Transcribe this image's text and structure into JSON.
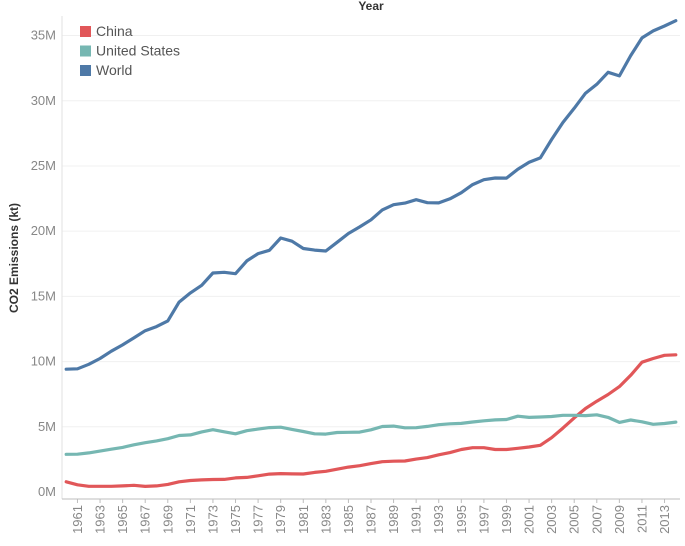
{
  "chart_data": {
    "type": "line",
    "title": "",
    "top_axis_title": "Year",
    "ylabel": "CO2 Emissions (kt)",
    "xlabel": "",
    "ylim": [
      0,
      36500000
    ],
    "y_ticks": [
      {
        "value": 0,
        "label": "0M"
      },
      {
        "value": 5000000,
        "label": "5M"
      },
      {
        "value": 10000000,
        "label": "10M"
      },
      {
        "value": 15000000,
        "label": "15M"
      },
      {
        "value": 20000000,
        "label": "20M"
      },
      {
        "value": 25000000,
        "label": "25M"
      },
      {
        "value": 30000000,
        "label": "30M"
      },
      {
        "value": 35000000,
        "label": "35M"
      }
    ],
    "x_tick_labels": [
      "1961",
      "1963",
      "1965",
      "1967",
      "1969",
      "1971",
      "1973",
      "1975",
      "1977",
      "1979",
      "1981",
      "1983",
      "1985",
      "1987",
      "1989",
      "1991",
      "1993",
      "1995",
      "1997",
      "1999",
      "2001",
      "2003",
      "2005",
      "2007",
      "2009",
      "2011",
      "2013"
    ],
    "x": [
      1960,
      1961,
      1962,
      1963,
      1964,
      1965,
      1966,
      1967,
      1968,
      1969,
      1970,
      1971,
      1972,
      1973,
      1974,
      1975,
      1976,
      1977,
      1978,
      1979,
      1980,
      1981,
      1982,
      1983,
      1984,
      1985,
      1986,
      1987,
      1988,
      1989,
      1990,
      1991,
      1992,
      1993,
      1994,
      1995,
      1996,
      1997,
      1998,
      1999,
      2000,
      2001,
      2002,
      2003,
      2004,
      2005,
      2006,
      2007,
      2008,
      2009,
      2010,
      2011,
      2012,
      2013,
      2014
    ],
    "grid": true,
    "legend_position": "top-left",
    "series": [
      {
        "name": "China",
        "color": "#e15759",
        "values": [
          780000,
          550000,
          440000,
          440000,
          440000,
          470000,
          510000,
          430000,
          470000,
          580000,
          780000,
          880000,
          930000,
          960000,
          970000,
          1080000,
          1120000,
          1240000,
          1370000,
          1410000,
          1390000,
          1380000,
          1500000,
          1590000,
          1750000,
          1910000,
          2020000,
          2180000,
          2320000,
          2360000,
          2380000,
          2520000,
          2640000,
          2850000,
          3020000,
          3260000,
          3400000,
          3400000,
          3260000,
          3260000,
          3350000,
          3450000,
          3580000,
          4160000,
          4900000,
          5680000,
          6400000,
          6960000,
          7480000,
          8080000,
          8950000,
          9950000,
          10240000,
          10480000,
          10520000
        ]
      },
      {
        "name": "United States",
        "color": "#76b7b2",
        "values": [
          2890000,
          2900000,
          3000000,
          3140000,
          3280000,
          3420000,
          3620000,
          3780000,
          3920000,
          4090000,
          4330000,
          4380000,
          4610000,
          4780000,
          4620000,
          4460000,
          4700000,
          4820000,
          4940000,
          4970000,
          4800000,
          4640000,
          4460000,
          4440000,
          4560000,
          4580000,
          4590000,
          4770000,
          5020000,
          5050000,
          4920000,
          4930000,
          5030000,
          5160000,
          5230000,
          5260000,
          5370000,
          5460000,
          5530000,
          5560000,
          5810000,
          5720000,
          5750000,
          5790000,
          5880000,
          5880000,
          5860000,
          5920000,
          5720000,
          5340000,
          5520000,
          5380000,
          5190000,
          5250000,
          5360000
        ]
      },
      {
        "name": "World",
        "color": "#4e79a7",
        "values": [
          9420000,
          9450000,
          9790000,
          10240000,
          10800000,
          11280000,
          11820000,
          12370000,
          12680000,
          13120000,
          14560000,
          15270000,
          15850000,
          16790000,
          16850000,
          16740000,
          17720000,
          18280000,
          18530000,
          19480000,
          19230000,
          18670000,
          18550000,
          18480000,
          19150000,
          19820000,
          20330000,
          20870000,
          21630000,
          22030000,
          22150000,
          22410000,
          22180000,
          22170000,
          22480000,
          22950000,
          23570000,
          23950000,
          24080000,
          24070000,
          24750000,
          25280000,
          25620000,
          27030000,
          28330000,
          29420000,
          30580000,
          31260000,
          32180000,
          31910000,
          33460000,
          34820000,
          35360000,
          35730000,
          36140000
        ]
      }
    ]
  }
}
